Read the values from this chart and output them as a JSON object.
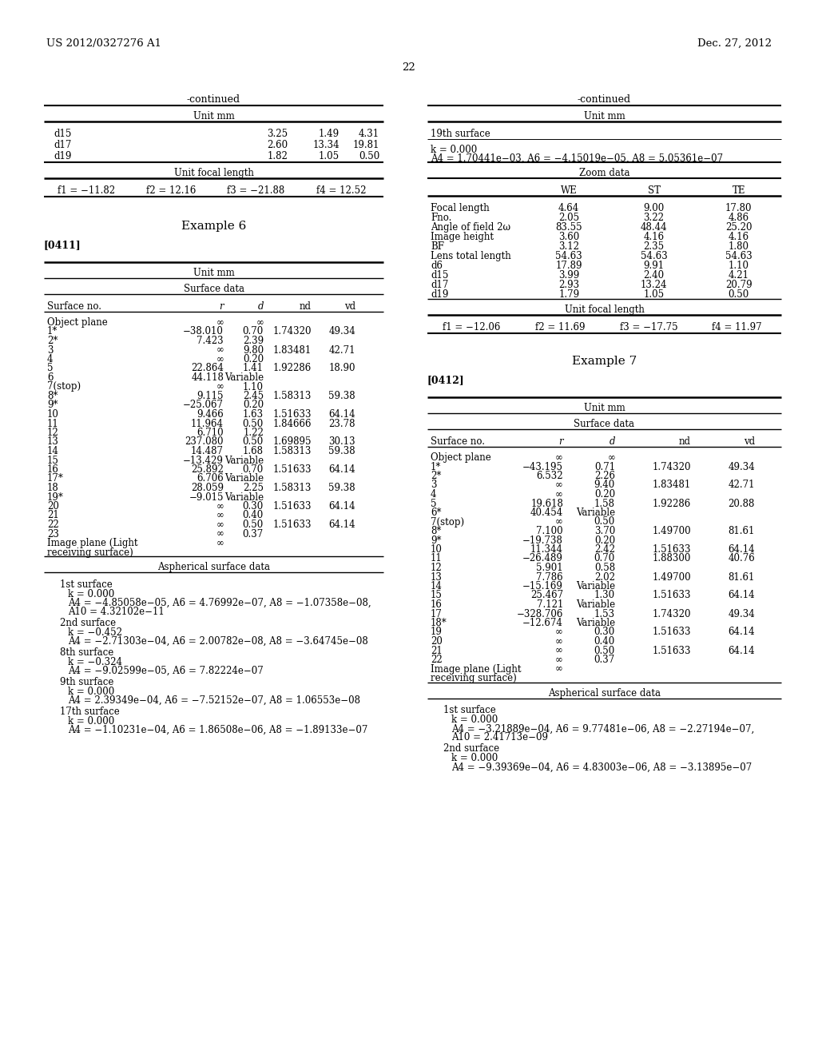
{
  "page_header_left": "US 2012/0327276 A1",
  "page_header_right": "Dec. 27, 2012",
  "page_number": "22",
  "bg": "#ffffff",
  "fg": "#000000",
  "left": {
    "continued": "-continued",
    "unit_mm": "Unit mm",
    "d_rows": [
      [
        "d15",
        "3.25",
        "1.49",
        "4.31"
      ],
      [
        "d17",
        "2.60",
        "13.34",
        "19.81"
      ],
      [
        "d19",
        "1.82",
        "1.05",
        "0.50"
      ]
    ],
    "focal_label": "Unit focal length",
    "focal_row": [
      "f1 = −11.82",
      "f2 = 12.16",
      "f3 = −21.88",
      "f4 = 12.52"
    ],
    "example": "Example 6",
    "para": "[0411]",
    "surf_unit": "Unit mm",
    "surf_label": "Surface data",
    "surf_header": [
      "Surface no.",
      "r",
      "d",
      "nd",
      "vd"
    ],
    "surf_rows": [
      [
        "Object plane",
        "∞",
        "∞",
        "",
        ""
      ],
      [
        "1*",
        "−38.010",
        "0.70",
        "1.74320",
        "49.34"
      ],
      [
        "2*",
        "7.423",
        "2.39",
        "",
        ""
      ],
      [
        "3",
        "∞",
        "9.80",
        "1.83481",
        "42.71"
      ],
      [
        "4",
        "∞",
        "0.20",
        "",
        ""
      ],
      [
        "5",
        "22.864",
        "1.41",
        "1.92286",
        "18.90"
      ],
      [
        "6",
        "44.118",
        "Variable",
        "",
        ""
      ],
      [
        "7(stop)",
        "∞",
        "1.10",
        "",
        ""
      ],
      [
        "8*",
        "9.115",
        "2.45",
        "1.58313",
        "59.38"
      ],
      [
        "9*",
        "−25.067",
        "0.20",
        "",
        ""
      ],
      [
        "10",
        "9.466",
        "1.63",
        "1.51633",
        "64.14"
      ],
      [
        "11",
        "11.964",
        "0.50",
        "1.84666",
        "23.78"
      ],
      [
        "12",
        "6.710",
        "1.22",
        "",
        ""
      ],
      [
        "13",
        "237.080",
        "0.50",
        "1.69895",
        "30.13"
      ],
      [
        "14",
        "14.487",
        "1.68",
        "1.58313",
        "59.38"
      ],
      [
        "15",
        "−13.429",
        "Variable",
        "",
        ""
      ],
      [
        "16",
        "25.892",
        "0.70",
        "1.51633",
        "64.14"
      ],
      [
        "17*",
        "6.706",
        "Variable",
        "",
        ""
      ],
      [
        "18",
        "28.059",
        "2.25",
        "1.58313",
        "59.38"
      ],
      [
        "19*",
        "−9.015",
        "Variable",
        "",
        ""
      ],
      [
        "20",
        "∞",
        "0.30",
        "1.51633",
        "64.14"
      ],
      [
        "21",
        "∞",
        "0.40",
        "",
        ""
      ],
      [
        "22",
        "∞",
        "0.50",
        "1.51633",
        "64.14"
      ],
      [
        "23",
        "∞",
        "0.37",
        "",
        ""
      ],
      [
        "Image plane (Light\nreceiving surface)",
        "∞",
        "",
        "",
        ""
      ]
    ],
    "asph_label": "Aspherical surface data",
    "asph_blocks": [
      {
        "title": "1st surface",
        "lines": [
          "k = 0.000",
          "A4 = −4.85058e−05, A6 = 4.76992e−07, A8 = −1.07358e−08,",
          "A10 = 4.32102e−11"
        ]
      },
      {
        "title": "2nd surface",
        "lines": [
          "k = −0.452",
          "A4 = −2.71303e−04, A6 = 2.00782e−08, A8 = −3.64745e−08"
        ]
      },
      {
        "title": "8th surface",
        "lines": [
          "k = −0.324",
          "A4 = −9.02599e−05, A6 = 7.82224e−07"
        ]
      },
      {
        "title": "9th surface",
        "lines": [
          "k = 0.000",
          "A4 = 2.39349e−04, A6 = −7.52152e−07, A8 = 1.06553e−08"
        ]
      },
      {
        "title": "17th surface",
        "lines": [
          "k = 0.000",
          "A4 = −1.10231e−04, A6 = 1.86508e−06, A8 = −1.89133e−07"
        ]
      }
    ]
  },
  "right": {
    "continued": "-continued",
    "unit_mm": "Unit mm",
    "surf19_title": "19th surface",
    "surf19_lines": [
      "k = 0.000",
      "A4 = 1.70441e−03, A6 = −4.15019e−05, A8 = 5.05361e−07"
    ],
    "zoom_label": "Zoom data",
    "zoom_header": [
      "",
      "WE",
      "ST",
      "TE"
    ],
    "zoom_rows": [
      [
        "Focal length",
        "4.64",
        "9.00",
        "17.80"
      ],
      [
        "Fno.",
        "2.05",
        "3.22",
        "4.86"
      ],
      [
        "Angle of field 2ω",
        "83.55",
        "48.44",
        "25.20"
      ],
      [
        "Image height",
        "3.60",
        "4.16",
        "4.16"
      ],
      [
        "BF",
        "3.12",
        "2.35",
        "1.80"
      ],
      [
        "Lens total length",
        "54.63",
        "54.63",
        "54.63"
      ],
      [
        "d6",
        "17.89",
        "9.91",
        "1.10"
      ],
      [
        "d15",
        "3.99",
        "2.40",
        "4.21"
      ],
      [
        "d17",
        "2.93",
        "13.24",
        "20.79"
      ],
      [
        "d19",
        "1.79",
        "1.05",
        "0.50"
      ]
    ],
    "focal_label": "Unit focal length",
    "focal_row": [
      "f1 = −12.06",
      "f2 = 11.69",
      "f3 = −17.75",
      "f4 = 11.97"
    ],
    "example": "Example 7",
    "para": "[0412]",
    "surf_unit": "Unit mm",
    "surf_label": "Surface data",
    "surf_header": [
      "Surface no.",
      "r",
      "d",
      "nd",
      "vd"
    ],
    "surf_rows": [
      [
        "Object plane",
        "∞",
        "∞",
        "",
        ""
      ],
      [
        "1*",
        "−43.195",
        "0.71",
        "1.74320",
        "49.34"
      ],
      [
        "2*",
        "6.532",
        "2.26",
        "",
        ""
      ],
      [
        "3",
        "∞",
        "9.40",
        "1.83481",
        "42.71"
      ],
      [
        "4",
        "∞",
        "0.20",
        "",
        ""
      ],
      [
        "5",
        "19.618",
        "1.58",
        "1.92286",
        "20.88"
      ],
      [
        "6*",
        "40.454",
        "Variable",
        "",
        ""
      ],
      [
        "7(stop)",
        "∞",
        "0.50",
        "",
        ""
      ],
      [
        "8*",
        "7.100",
        "3.70",
        "1.49700",
        "81.61"
      ],
      [
        "9*",
        "−19.738",
        "0.20",
        "",
        ""
      ],
      [
        "10",
        "11.344",
        "2.42",
        "1.51633",
        "64.14"
      ],
      [
        "11",
        "−26.489",
        "0.70",
        "1.88300",
        "40.76"
      ],
      [
        "12",
        "5.901",
        "0.58",
        "",
        ""
      ],
      [
        "13",
        "7.786",
        "2.02",
        "1.49700",
        "81.61"
      ],
      [
        "14",
        "−15.169",
        "Variable",
        "",
        ""
      ],
      [
        "15",
        "25.467",
        "1.30",
        "1.51633",
        "64.14"
      ],
      [
        "16",
        "7.121",
        "Variable",
        "",
        ""
      ],
      [
        "17",
        "−328.706",
        "1.53",
        "1.74320",
        "49.34"
      ],
      [
        "18*",
        "−12.674",
        "Variable",
        "",
        ""
      ],
      [
        "19",
        "∞",
        "0.30",
        "1.51633",
        "64.14"
      ],
      [
        "20",
        "∞",
        "0.40",
        "",
        ""
      ],
      [
        "21",
        "∞",
        "0.50",
        "1.51633",
        "64.14"
      ],
      [
        "22",
        "∞",
        "0.37",
        "",
        ""
      ],
      [
        "Image plane (Light\nreceiving surface)",
        "∞",
        "",
        "",
        ""
      ]
    ],
    "asph_label": "Aspherical surface data",
    "asph_blocks": [
      {
        "title": "1st surface",
        "lines": [
          "k = 0.000",
          "A4 = −3.21889e−04, A6 = 9.77481e−06, A8 = −2.27194e−07,",
          "A10 = 2.41713e−09"
        ]
      },
      {
        "title": "2nd surface",
        "lines": [
          "k = 0.000",
          "A4 = −9.39369e−04, A6 = 4.83003e−06, A8 = −3.13895e−07"
        ]
      }
    ]
  }
}
